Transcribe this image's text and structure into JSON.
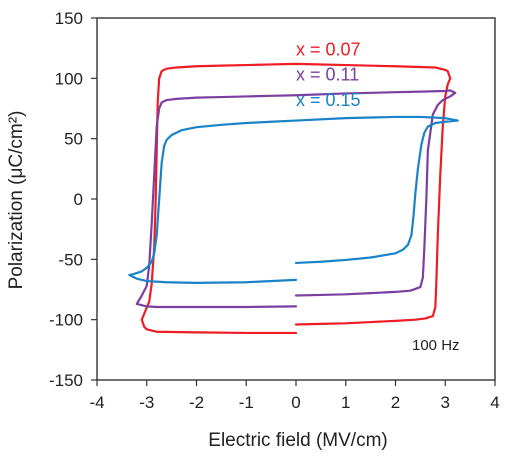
{
  "chart_data": {
    "type": "line",
    "title": "",
    "xlabel": "Electric field (MV/cm)",
    "ylabel": "Polarization  (μC/cm²)",
    "xlim": [
      -4,
      4
    ],
    "ylim": [
      -150,
      150
    ],
    "xticks": [
      "-4",
      "-3",
      "-2",
      "-1",
      "0",
      "1",
      "2",
      "3",
      "4"
    ],
    "yticks": [
      "-150",
      "-100",
      "-50",
      "0",
      "50",
      "100",
      "150"
    ],
    "grid": false,
    "legend": "none",
    "annotation": "100 Hz",
    "series": [
      {
        "name": "x = 0.07",
        "color": "#ee1c25",
        "label_position": [
          0.0,
          119
        ],
        "x": [
          0.0,
          0.5,
          1.0,
          1.5,
          2.0,
          2.4,
          2.6,
          2.75,
          2.8,
          2.82,
          2.85,
          2.9,
          2.95,
          3.0,
          3.05,
          3.1,
          3.05,
          3.0,
          2.8,
          2.0,
          1.0,
          0.0,
          -0.5,
          -1.0,
          -1.5,
          -2.0,
          -2.4,
          -2.6,
          -2.7,
          -2.75,
          -2.78,
          -2.8,
          -2.82,
          -2.85,
          -2.9,
          -2.95,
          -3.05,
          -3.1,
          -3.05,
          -3.0,
          -2.9,
          -2.8,
          -2.0,
          -1.0,
          0.0
        ],
        "y": [
          -104,
          -103.5,
          -103,
          -102,
          -101,
          -100,
          -99,
          -97,
          -90,
          -70,
          -30,
          20,
          60,
          85,
          95,
          100,
          106,
          107,
          109,
          110,
          111,
          112,
          111.5,
          111,
          110.5,
          110,
          109,
          108,
          106,
          100,
          80,
          40,
          0,
          -40,
          -70,
          -85,
          -95,
          -100,
          -106,
          -108,
          -109,
          -110,
          -110.5,
          -111,
          -111
        ]
      },
      {
        "name": "x = 0.11",
        "color": "#7b3fa0",
        "label_position": [
          0.0,
          98
        ],
        "x": [
          0.0,
          0.5,
          1.0,
          1.5,
          2.0,
          2.3,
          2.5,
          2.55,
          2.58,
          2.62,
          2.65,
          2.75,
          2.85,
          2.95,
          3.1,
          3.2,
          3.1,
          3.0,
          2.5,
          2.0,
          1.0,
          0.0,
          -0.5,
          -1.0,
          -1.5,
          -2.0,
          -2.4,
          -2.6,
          -2.7,
          -2.75,
          -2.8,
          -2.85,
          -2.9,
          -2.95,
          -3.0,
          -3.1,
          -3.2,
          -3.1,
          -3.0,
          -2.8,
          -2.0,
          -1.0,
          0.0
        ],
        "y": [
          -80,
          -79.5,
          -79,
          -78,
          -77,
          -76,
          -73,
          -65,
          -40,
          0,
          40,
          70,
          78,
          82,
          85,
          88,
          90,
          89.5,
          89,
          88.5,
          87.5,
          86,
          85.5,
          85,
          84.5,
          84,
          83,
          82,
          80,
          75,
          60,
          20,
          -20,
          -55,
          -72,
          -80,
          -87,
          -88,
          -89,
          -89.5,
          -89.5,
          -89.5,
          -89
        ]
      },
      {
        "name": "x = 0.15",
        "color": "#1a83c8",
        "label_position": [
          0.0,
          77
        ],
        "x": [
          0.0,
          0.5,
          1.0,
          1.5,
          2.0,
          2.15,
          2.25,
          2.32,
          2.36,
          2.4,
          2.45,
          2.52,
          2.58,
          2.65,
          2.8,
          3.0,
          3.25,
          3.0,
          2.5,
          2.0,
          1.0,
          0.0,
          -0.5,
          -1.0,
          -1.5,
          -2.0,
          -2.3,
          -2.5,
          -2.6,
          -2.65,
          -2.7,
          -2.75,
          -2.8,
          -2.85,
          -2.9,
          -3.0,
          -3.1,
          -3.25,
          -3.35,
          -3.2,
          -3.0,
          -2.6,
          -2.0,
          -1.0,
          0.0
        ],
        "y": [
          -53,
          -52,
          -50.5,
          -48.5,
          -45,
          -42,
          -38,
          -30,
          -15,
          5,
          25,
          45,
          55,
          60,
          63,
          64,
          65,
          67,
          68,
          68,
          67,
          65,
          64,
          63,
          61.5,
          59.5,
          57,
          53,
          49,
          44,
          30,
          0,
          -30,
          -45,
          -52,
          -57,
          -60,
          -62,
          -63,
          -66,
          -68,
          -69,
          -69.5,
          -69,
          -67
        ]
      }
    ]
  }
}
